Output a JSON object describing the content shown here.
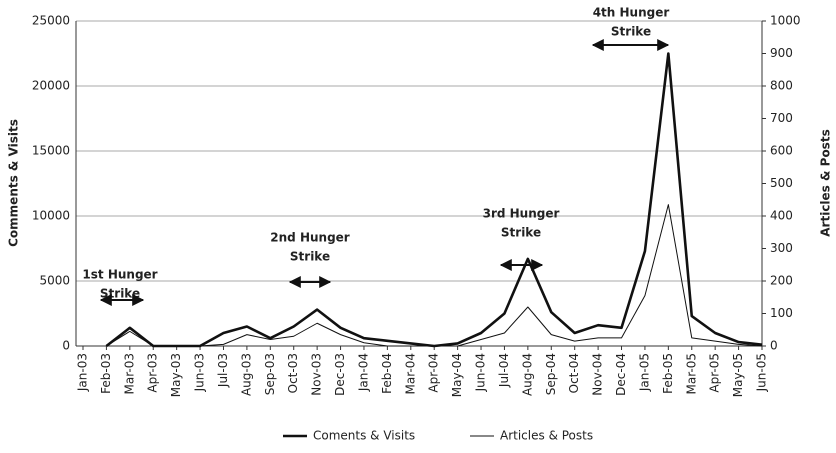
{
  "chart_data": {
    "type": "line",
    "y_label": "Comments & Visits",
    "y2_label": "Articles & Posts",
    "categories": [
      "Jan-03",
      "Feb-03",
      "Mar-03",
      "Apr-03",
      "May-03",
      "Jun-03",
      "Jul-03",
      "Aug-03",
      "Sep-03",
      "Oct-03",
      "Nov-03",
      "Dec-03",
      "Jan-04",
      "Feb-04",
      "Mar-04",
      "Apr-04",
      "May-04",
      "Jun-04",
      "Jul-04",
      "Aug-04",
      "Sep-04",
      "Oct-04",
      "Nov-04",
      "Dec-04",
      "Jan-05",
      "Feb-05",
      "Mar-05",
      "Apr-05",
      "May-05",
      "Jun-05"
    ],
    "series": [
      {
        "name": "Coments & Visits",
        "color": "#111111",
        "values": [
          null,
          0,
          1400,
          0,
          0,
          0,
          1000,
          1500,
          600,
          1500,
          2800,
          1400,
          600,
          400,
          200,
          0,
          200,
          1000,
          2500,
          6700,
          2600,
          1000,
          1600,
          1400,
          7300,
          22500,
          2300,
          1000,
          300,
          100
        ]
      },
      {
        "name": "Articles & Posts",
        "color": "#111111",
        "axis": "y2",
        "values": [
          null,
          0,
          45,
          0,
          0,
          0,
          5,
          35,
          20,
          30,
          70,
          35,
          10,
          0,
          0,
          0,
          0,
          20,
          40,
          120,
          35,
          15,
          25,
          25,
          155,
          435,
          25,
          15,
          5,
          0
        ]
      }
    ],
    "ylim": [
      0,
      25000
    ],
    "yticks": [
      0,
      5000,
      10000,
      15000,
      20000,
      25000
    ],
    "y2lim": [
      0,
      1000
    ],
    "y2ticks": [
      0,
      100,
      200,
      300,
      400,
      500,
      600,
      700,
      800,
      900,
      1000
    ],
    "grid": true,
    "legend": "bottom",
    "annotations": [
      {
        "lines": [
          "1st Hunger",
          "Strike"
        ]
      },
      {
        "lines": [
          "2nd Hunger",
          "Strike"
        ]
      },
      {
        "lines": [
          "3rd Hunger",
          "Strike"
        ]
      },
      {
        "lines": [
          "4th Hunger",
          "Strike"
        ]
      }
    ]
  }
}
